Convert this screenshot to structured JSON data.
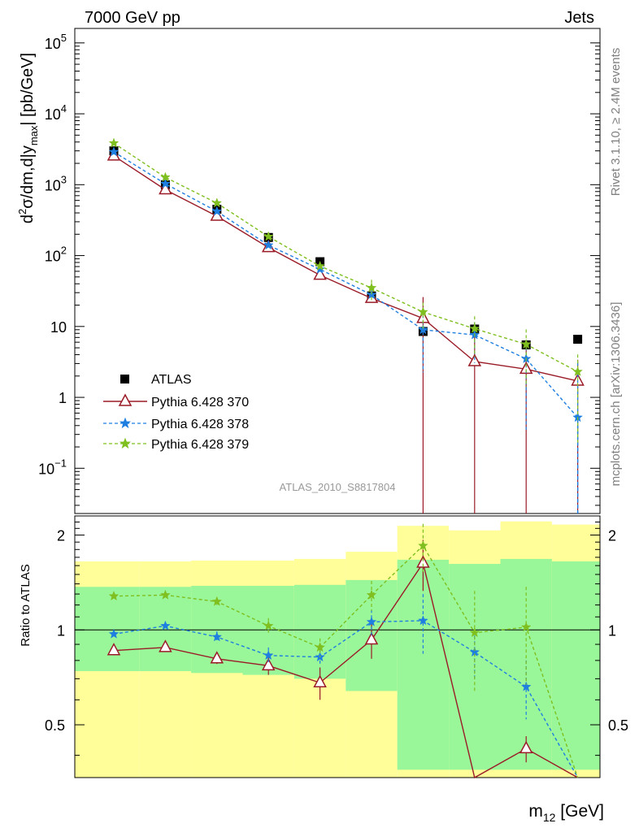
{
  "header": {
    "left": "7000 GeV pp",
    "right": "Jets"
  },
  "side_labels": {
    "rivet": "Rivet 3.1.10, ≥ 2.4M events",
    "mcplots": "mcplots.cern.ch [arXiv:1306.3436]"
  },
  "analysis_id": "ATLAS_2010_S8817804",
  "xlabel": {
    "main": "m",
    "sub": "12",
    "unit": " [GeV]"
  },
  "ylabel_top": {
    "a": "d",
    "sup": "2",
    "b": "σ/dm,d|y",
    "sub": "max",
    "c": "| [pb/GeV]"
  },
  "ylabel_bottom": "Ratio to ATLAS",
  "colors": {
    "data": "#000000",
    "p370": "#9a1b27",
    "p378": "#1f7fe0",
    "p379": "#7fbf1f",
    "band_inner": "#99f799",
    "band_outer": "#fffe99"
  },
  "chart_data": [
    {
      "type": "scatter",
      "title": "",
      "yscale": "log",
      "ylim": [
        0.023,
        160000
      ],
      "x": [
        1,
        2,
        3,
        4,
        5,
        6,
        7,
        8,
        9,
        10
      ],
      "yticks": [
        {
          "v": 100000,
          "base": "10",
          "exp": "5"
        },
        {
          "v": 10000,
          "base": "10",
          "exp": "4"
        },
        {
          "v": 1000,
          "base": "10",
          "exp": "3"
        },
        {
          "v": 100,
          "base": "10",
          "exp": "2"
        },
        {
          "v": 10,
          "base": "10",
          "exp": ""
        },
        {
          "v": 1,
          "base": "1",
          "exp": ""
        },
        {
          "v": 0.1,
          "base": "10",
          "exp": "−1"
        }
      ],
      "series": [
        {
          "name": "ATLAS",
          "key": "data",
          "marker": "square",
          "values": [
            3000,
            1000,
            450,
            180,
            82,
            27,
            8.5,
            9.2,
            5.5,
            6.6
          ]
        },
        {
          "name": "Pythia 6.428 370",
          "key": "p370",
          "marker": "triangle",
          "dash": "",
          "values": [
            2550,
            850,
            360,
            130,
            53,
            25,
            13,
            3.2,
            2.5,
            1.7
          ],
          "err": [
            0,
            0,
            0,
            0,
            0,
            0,
            0.4,
            0.5,
            0.5,
            0.4
          ]
        },
        {
          "name": "Pythia 6.428 378",
          "key": "p378",
          "marker": "star",
          "dash": "4,3",
          "values": [
            2900,
            1030,
            420,
            140,
            64,
            28,
            9.0,
            7.6,
            3.5,
            0.52
          ],
          "err": [
            0,
            0,
            0,
            0,
            0,
            0,
            0.25,
            0.2,
            0.3,
            2.0
          ]
        },
        {
          "name": "Pythia 6.428 379",
          "key": "p379",
          "marker": "star",
          "dash": "4,3",
          "values": [
            3850,
            1270,
            550,
            185,
            71,
            35,
            16,
            9.3,
            5.6,
            2.3
          ],
          "err": [
            0,
            0,
            0,
            0,
            0,
            0.12,
            0.14,
            0.2,
            0.25,
            0.3
          ]
        }
      ]
    },
    {
      "type": "line",
      "ylabel": "Ratio to ATLAS",
      "ylim": [
        0.34,
        2.3
      ],
      "x": [
        1,
        2,
        3,
        4,
        5,
        6,
        7,
        8,
        9,
        10
      ],
      "yticks": [
        "0.5",
        "1",
        "2"
      ],
      "yticks_values": [
        0.5,
        1,
        2
      ],
      "bands": {
        "edges": [
          0.25,
          1.5,
          2.5,
          3.5,
          4.5,
          5.5,
          6.5,
          7.5,
          8.5,
          9.5,
          10.5
        ],
        "inner_hi": [
          1.37,
          1.37,
          1.38,
          1.38,
          1.39,
          1.44,
          1.67,
          1.62,
          1.68,
          1.65
        ],
        "inner_lo": [
          0.74,
          0.74,
          0.73,
          0.72,
          0.7,
          0.64,
          0.36,
          0.36,
          0.36,
          0.36
        ],
        "outer_hi": [
          1.65,
          1.65,
          1.66,
          1.66,
          1.68,
          1.77,
          2.14,
          2.07,
          2.21,
          2.16
        ],
        "outer_lo": [
          0.34,
          0.34,
          0.34,
          0.34,
          0.34,
          0.34,
          0.34,
          0.34,
          0.34,
          0.34
        ]
      },
      "series": [
        {
          "name": "Pythia 6.428 370",
          "key": "p370",
          "marker": "triangle",
          "dash": "",
          "values": [
            0.86,
            0.88,
            0.81,
            0.77,
            0.68,
            0.93,
            1.63,
            0.34,
            0.42,
            0.34
          ],
          "err": [
            0.0,
            0.0,
            0.03,
            0.05,
            0.08,
            0.12,
            0.3,
            0.0,
            0.04,
            0.0
          ]
        },
        {
          "name": "Pythia 6.428 378",
          "key": "p378",
          "marker": "star",
          "dash": "4,3",
          "values": [
            0.97,
            1.03,
            0.95,
            0.83,
            0.82,
            1.06,
            1.07,
            0.85,
            0.66,
            0.34
          ],
          "err": [
            0.0,
            0.0,
            0.04,
            0.05,
            0.05,
            0.1,
            0.23,
            0.15,
            0.14,
            0.0
          ]
        },
        {
          "name": "Pythia 6.428 379",
          "key": "p379",
          "marker": "star",
          "dash": "4,3",
          "values": [
            1.28,
            1.29,
            1.23,
            1.03,
            0.88,
            1.29,
            1.85,
            0.98,
            1.02,
            0.34
          ],
          "err": [
            0.0,
            0.02,
            0.03,
            0.06,
            0.06,
            0.14,
            0.32,
            0.35,
            0.35,
            0.0
          ]
        }
      ]
    }
  ]
}
